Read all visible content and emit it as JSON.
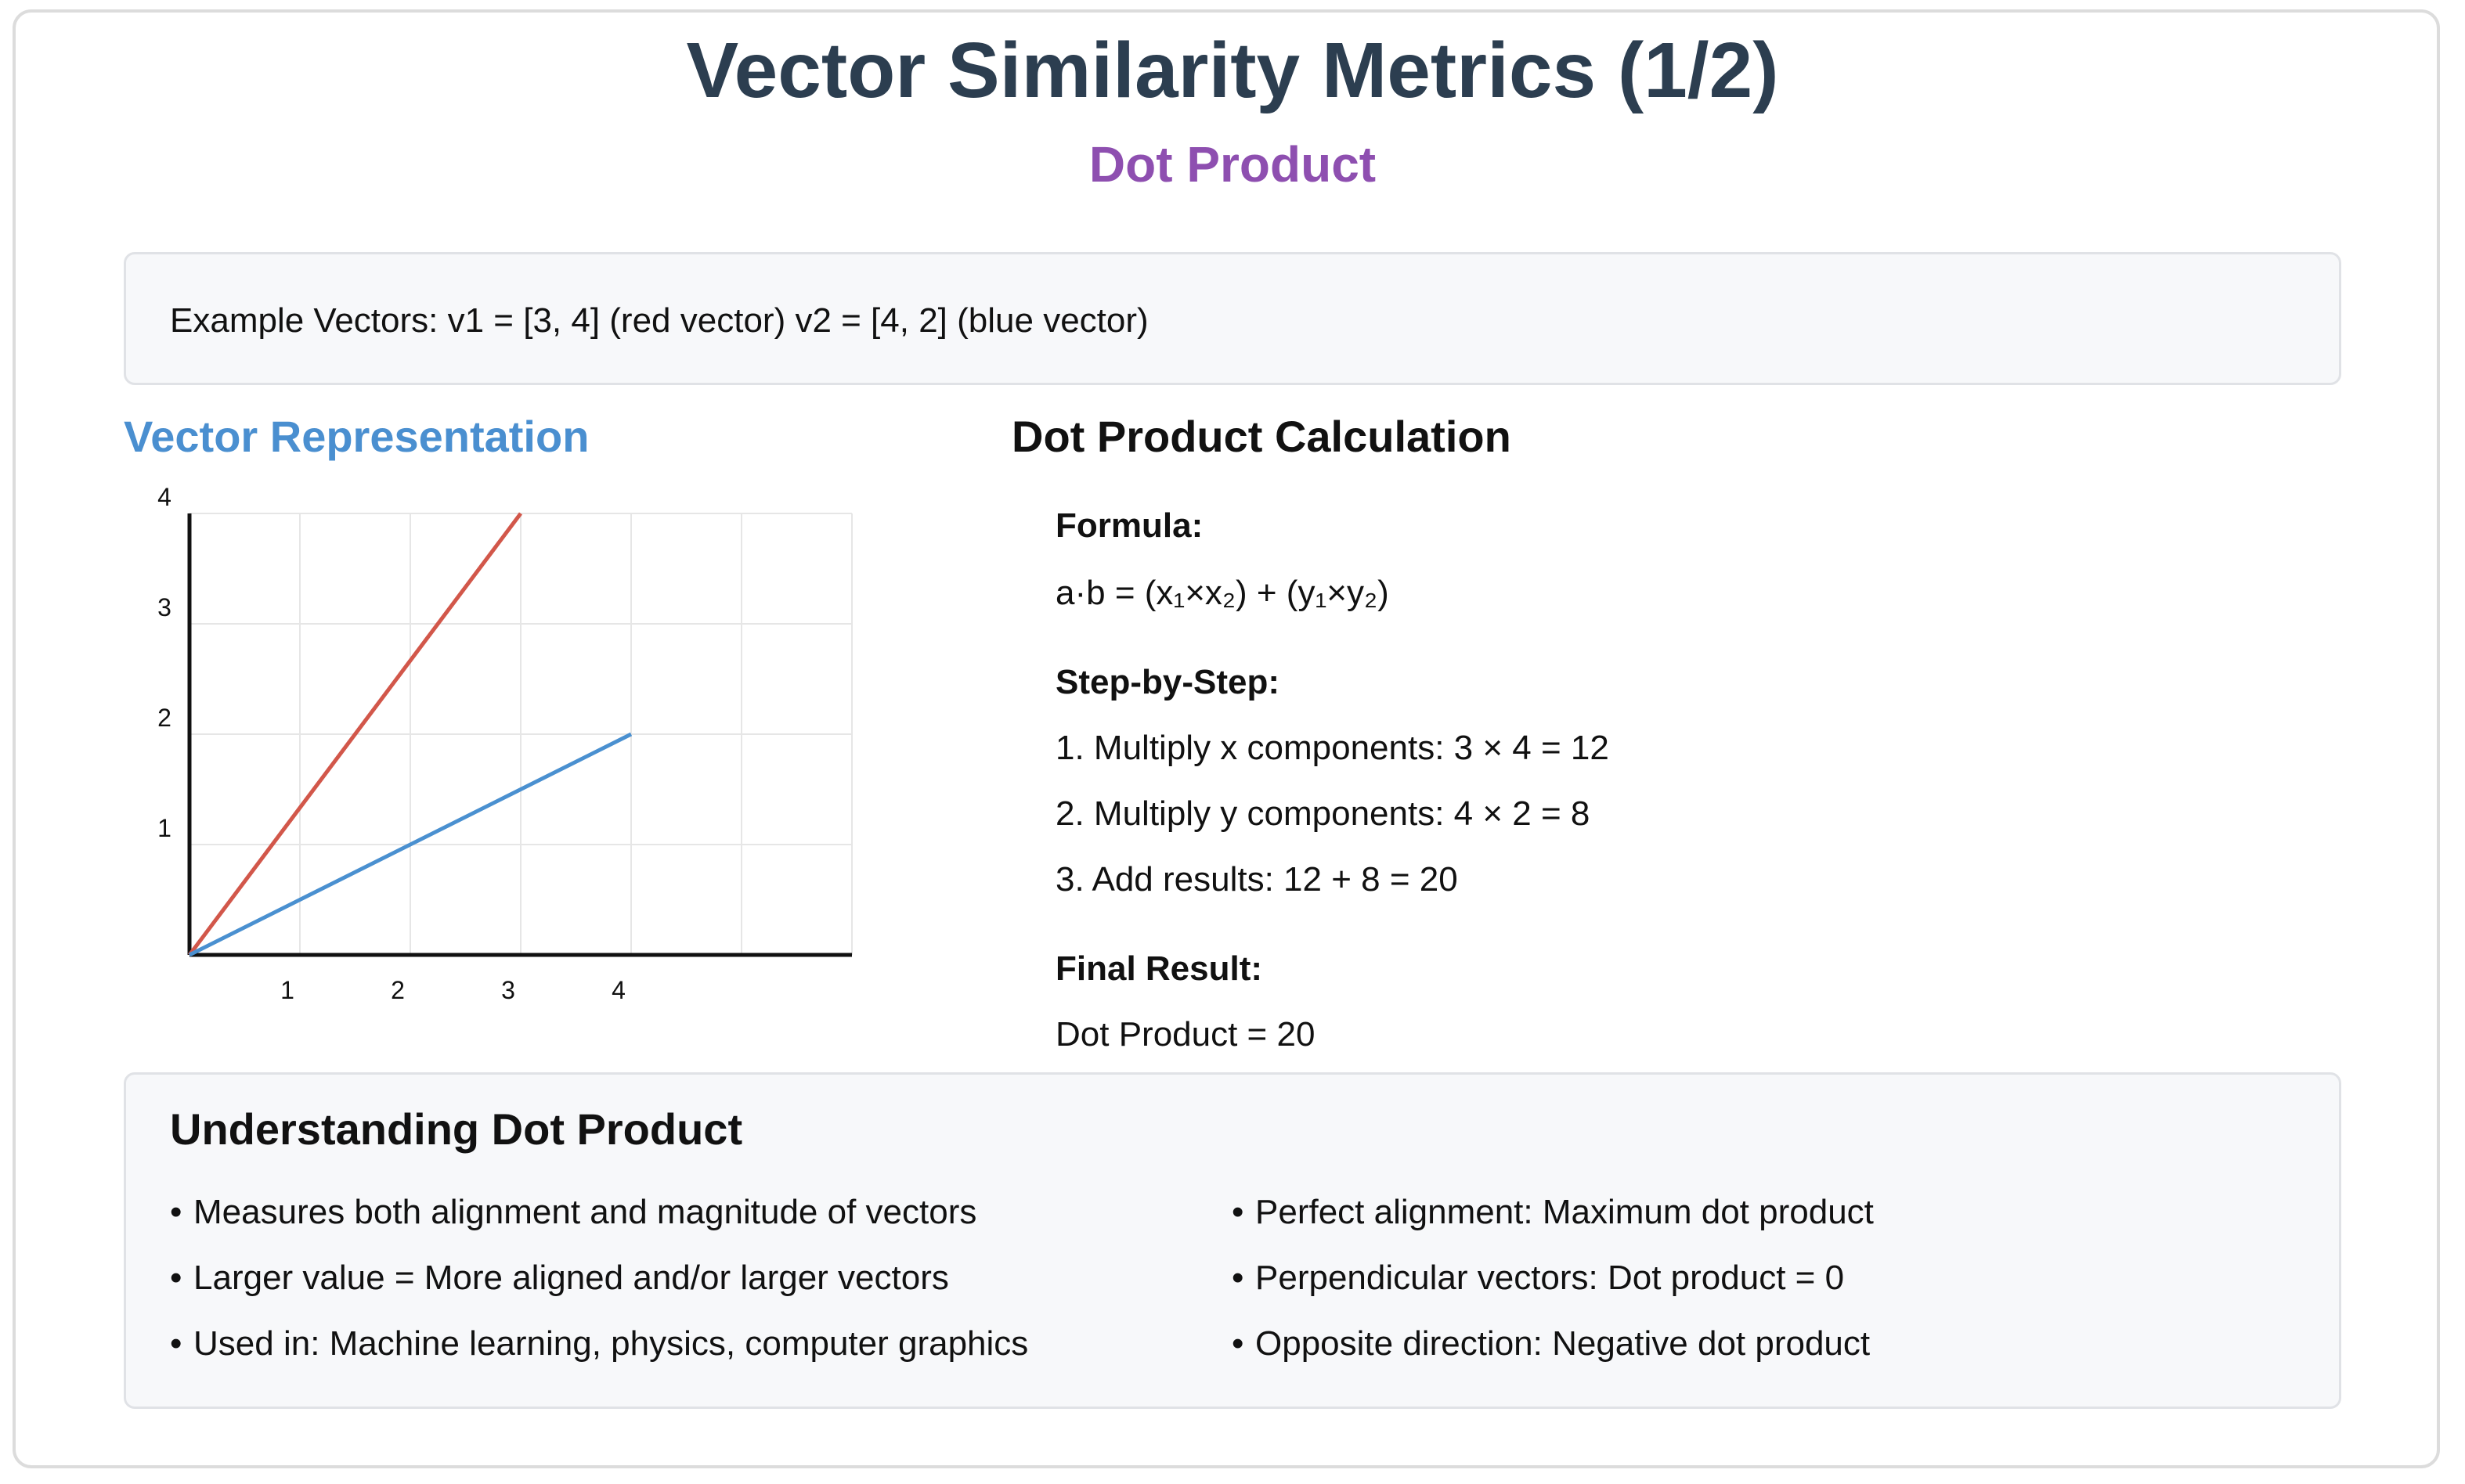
{
  "title": "Vector Similarity Metrics (1/2)",
  "subtitle": "Dot Product",
  "example": "Example Vectors: v1 = [3, 4] (red vector) v2 = [4, 2] (blue vector)",
  "vector_heading": "Vector Representation",
  "calc_heading": "Dot Product Calculation",
  "calc": {
    "formula_label": "Formula:",
    "formula": "a·b = (x₁×x₂) + (y₁×y₂)",
    "steps_label": "Step-by-Step:",
    "steps": [
      "1. Multiply x components: 3 × 4 = 12",
      "2. Multiply y components: 4 × 2 = 8",
      "3. Add results: 12 + 8 = 20"
    ],
    "result_label": "Final Result:",
    "result": "Dot Product = 20"
  },
  "understanding": {
    "title": "Understanding Dot Product",
    "bullet": "•",
    "left": [
      "Measures both alignment and magnitude of vectors",
      "Larger value = More aligned and/or larger vectors",
      "Used in: Machine learning, physics, computer graphics"
    ],
    "right": [
      "Perfect alignment: Maximum dot product",
      "Perpendicular vectors: Dot product = 0",
      "Opposite direction: Negative dot product"
    ]
  },
  "chart_data": {
    "type": "line",
    "x_ticks": [
      "1",
      "2",
      "3",
      "4"
    ],
    "y_ticks": [
      "1",
      "2",
      "3",
      "4"
    ],
    "xlim": [
      0,
      6
    ],
    "ylim": [
      0,
      4
    ],
    "grid": true,
    "series": [
      {
        "points": [
          [
            0,
            0
          ],
          [
            3,
            4
          ]
        ],
        "color": "#d2574a"
      },
      {
        "points": [
          [
            0,
            0
          ],
          [
            4,
            2
          ]
        ],
        "color": "#4a90d0"
      }
    ]
  }
}
